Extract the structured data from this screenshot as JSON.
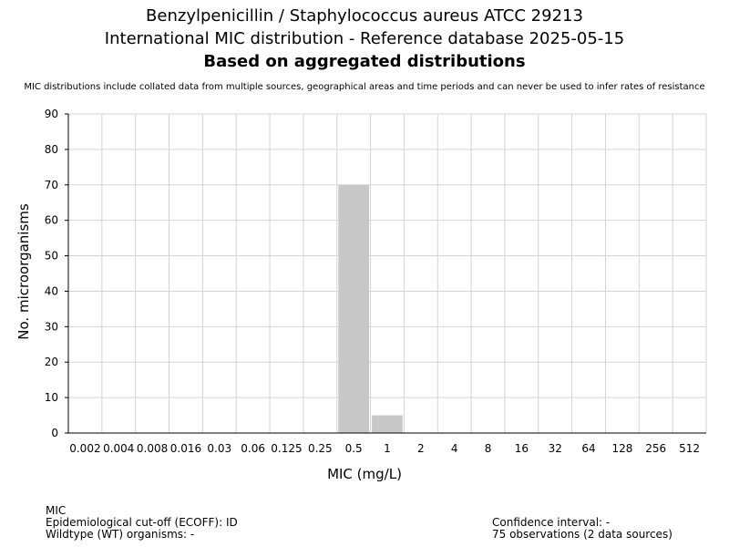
{
  "chart_data": {
    "type": "bar",
    "title_lines": [
      "Benzylpenicillin / Staphylococcus aureus ATCC 29213",
      "International MIC distribution - Reference database 2025-05-15",
      "Based on aggregated distributions"
    ],
    "subtitle": "MIC distributions include collated data from multiple sources, geographical areas and time periods and can never be used to infer rates of resistance",
    "xlabel": "MIC (mg/L)",
    "ylabel": "No. microorganisms",
    "categories": [
      "0.002",
      "0.004",
      "0.008",
      "0.016",
      "0.03",
      "0.06",
      "0.125",
      "0.25",
      "0.5",
      "1",
      "2",
      "4",
      "8",
      "16",
      "32",
      "64",
      "128",
      "256",
      "512"
    ],
    "values": [
      0,
      0,
      0,
      0,
      0,
      0,
      0,
      0,
      70,
      5,
      0,
      0,
      0,
      0,
      0,
      0,
      0,
      0,
      0
    ],
    "ylim": [
      0,
      90
    ],
    "yticks": [
      0,
      10,
      20,
      30,
      40,
      50,
      60,
      70,
      80,
      90
    ],
    "grid": true,
    "bar_color": "#c8c8c8",
    "grid_color": "#d3d3d3"
  },
  "footer": {
    "left": [
      "MIC",
      "Epidemiological cut-off (ECOFF): ID",
      "Wildtype (WT) organisms:  -"
    ],
    "right": [
      "Confidence interval: -",
      "75 observations (2 data sources)"
    ]
  }
}
